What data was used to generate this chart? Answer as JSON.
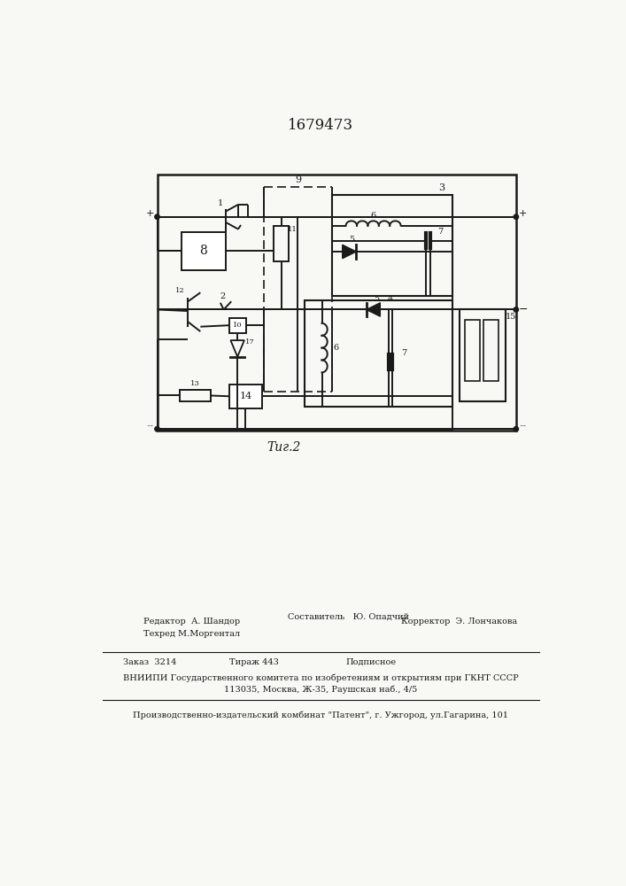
{
  "title": "1679473",
  "fig_label": "Τиг.2",
  "bg_color": "#f8f8f5",
  "line_color": "#1a1a1a",
  "editor": "Редактор  А. Шандор",
  "sostavitel": "Составитель   Ю. Опадчий",
  "tekhred": "Техред М.Моргентал",
  "korrektor": "Корректор  Э. Лончакова",
  "zakaz": "Заказ  3214",
  "tirazh": "Тираж 443",
  "podpisnoe": "Подписное",
  "vniip_line1": "ВНИИПИ Государственного комитета по изобретениям и открытиям при ГКНТ СССР",
  "vniip_line2": "113035, Москва, Ж-35, Раушская наб., 4/5",
  "patent_line": "Производственно-издательский комбинат \"Патент\", г. Ужгород, ул.Гагарина, 101"
}
